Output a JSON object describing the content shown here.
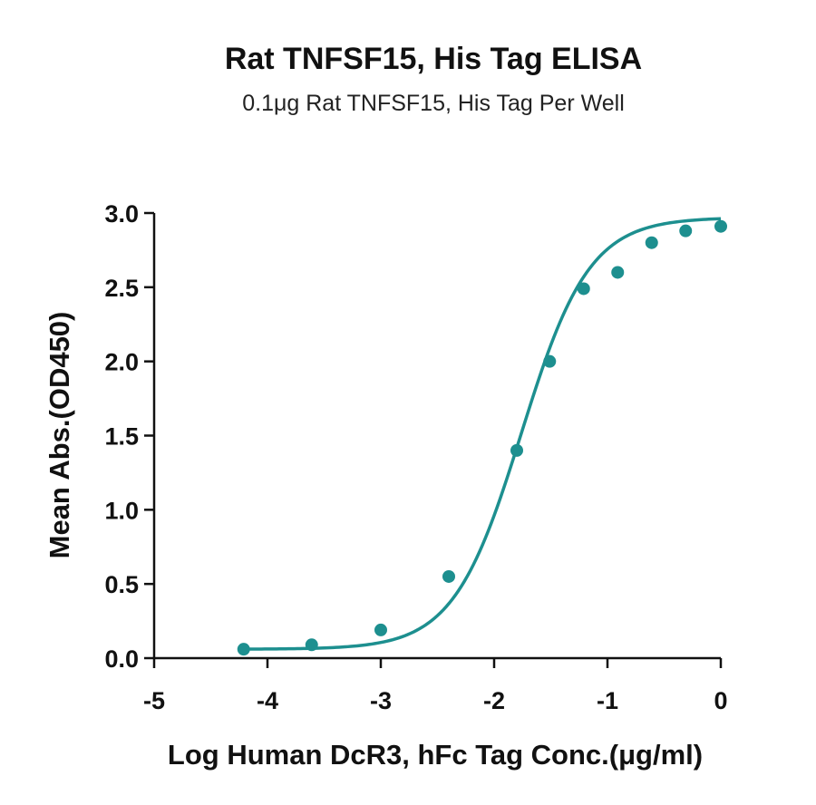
{
  "chart_data": {
    "type": "scatter",
    "title": "Rat TNFSF15, His Tag ELISA",
    "subtitle": "0.1μg Rat TNFSF15, His Tag Per Well",
    "xlabel": "Log Human DcR3, hFc Tag Conc.(μg/ml)",
    "ylabel": "Mean Abs.(OD450)",
    "xlim": [
      -5,
      0
    ],
    "ylim": [
      0,
      3
    ],
    "x_ticks": [
      -5,
      -4,
      -3,
      -2,
      -1,
      0
    ],
    "x_tick_labels": [
      "-5",
      "-4",
      "-3",
      "-2",
      "-1",
      "0"
    ],
    "y_ticks": [
      0,
      0.5,
      1,
      1.5,
      2,
      2.5,
      3
    ],
    "y_tick_labels": [
      "0.0",
      "0.5",
      "1.0",
      "1.5",
      "2.0",
      "2.5",
      "3.0"
    ],
    "grid": false,
    "legend": "none",
    "series": [
      {
        "x": [
          -4.21,
          -3.61,
          -3.0,
          -2.4,
          -1.8,
          -1.51,
          -1.21,
          -0.91,
          -0.61,
          -0.31,
          0.0
        ],
        "y": [
          0.06,
          0.09,
          0.19,
          0.55,
          1.4,
          2.0,
          2.49,
          2.6,
          2.8,
          2.88,
          2.91
        ],
        "color": "#1d8f8f",
        "fit": "four-parameter logistic"
      }
    ]
  }
}
